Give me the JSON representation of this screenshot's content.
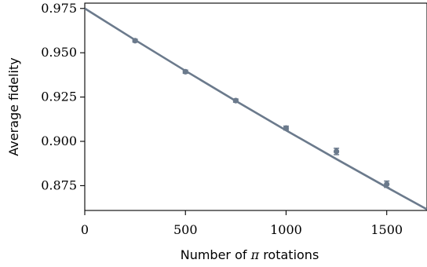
{
  "chart_data": {
    "type": "scatter",
    "xlabel_prefix": "Number of ",
    "xlabel_symbol": "π",
    "xlabel_suffix": " rotations",
    "ylabel": "Average fidelity",
    "xlim": [
      0,
      1700
    ],
    "ylim": [
      0.861,
      0.978
    ],
    "xticks": [
      0,
      500,
      1000,
      1500
    ],
    "xtick_labels": [
      "0",
      "500",
      "1000",
      "1500"
    ],
    "yticks": [
      0.875,
      0.9,
      0.925,
      0.95,
      0.975
    ],
    "ytick_labels": [
      "0.875",
      "0.900",
      "0.925",
      "0.950",
      "0.975"
    ],
    "grid": false,
    "color": "#6b7a8c",
    "series": [
      {
        "x": [
          250,
          500,
          750,
          1000,
          1250,
          1500
        ],
        "y": [
          0.9568,
          0.9393,
          0.923,
          0.9075,
          0.8943,
          0.8758
        ],
        "yerr": [
          0.0008,
          0.0009,
          0.0009,
          0.0011,
          0.0018,
          0.0018
        ]
      }
    ],
    "fit": {
      "x": [
        0,
        250,
        500,
        750,
        1000,
        1250,
        1500,
        1700
      ],
      "y": [
        0.975,
        0.9572,
        0.9398,
        0.9228,
        0.9062,
        0.89,
        0.8741,
        0.8616
      ]
    }
  }
}
